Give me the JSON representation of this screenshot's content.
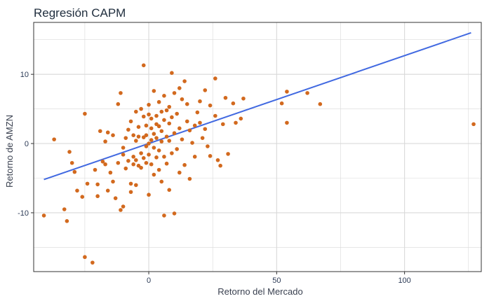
{
  "chart_data": {
    "type": "scatter",
    "title": "Regresión CAPM",
    "xlabel": "Retorno del Mercado",
    "ylabel": "Retorno de AMZN",
    "xlim": [
      -45,
      130
    ],
    "ylim": [
      -18.5,
      17.5
    ],
    "x_ticks": [
      0,
      50,
      100
    ],
    "y_ticks": [
      -10,
      0,
      10
    ],
    "grid": true,
    "legend": "none",
    "colors": {
      "points": "#d2691e",
      "line": "#4169e1",
      "grid": "#d9d9d9",
      "border": "#333333"
    },
    "regression_line": {
      "x": [
        -41,
        126
      ],
      "y": [
        -5.2,
        16.0
      ]
    },
    "points": [
      {
        "x": -41,
        "y": -10.4
      },
      {
        "x": -37,
        "y": 0.6
      },
      {
        "x": -33,
        "y": -9.5
      },
      {
        "x": -32,
        "y": -11.2
      },
      {
        "x": -31,
        "y": -1.2
      },
      {
        "x": -30,
        "y": -2.8
      },
      {
        "x": -29,
        "y": -4.1
      },
      {
        "x": -28,
        "y": -6.8
      },
      {
        "x": -26,
        "y": -7.7
      },
      {
        "x": -25,
        "y": 4.3
      },
      {
        "x": -25,
        "y": -16.4
      },
      {
        "x": -24,
        "y": -5.8
      },
      {
        "x": -22,
        "y": -17.2
      },
      {
        "x": -21,
        "y": -3.8
      },
      {
        "x": -20,
        "y": -7.6
      },
      {
        "x": -20,
        "y": -5.9
      },
      {
        "x": -19,
        "y": 1.8
      },
      {
        "x": -18,
        "y": -2.6
      },
      {
        "x": -17,
        "y": -3.0
      },
      {
        "x": -17,
        "y": 0.3
      },
      {
        "x": -16,
        "y": 1.6
      },
      {
        "x": -16,
        "y": -6.8
      },
      {
        "x": -15,
        "y": -4.2
      },
      {
        "x": -14,
        "y": 1.2
      },
      {
        "x": -14,
        "y": -5.5
      },
      {
        "x": -13,
        "y": -7.9
      },
      {
        "x": -12,
        "y": -2.8
      },
      {
        "x": -12,
        "y": 5.7
      },
      {
        "x": -11,
        "y": 7.3
      },
      {
        "x": -11,
        "y": -9.6
      },
      {
        "x": -10,
        "y": -9.1
      },
      {
        "x": -10,
        "y": -0.6
      },
      {
        "x": -10,
        "y": -1.6
      },
      {
        "x": -9,
        "y": 0.8
      },
      {
        "x": -9,
        "y": -3.6
      },
      {
        "x": -8,
        "y": -2.5
      },
      {
        "x": -8,
        "y": 2.0
      },
      {
        "x": -7,
        "y": -7.0
      },
      {
        "x": -7,
        "y": -5.8
      },
      {
        "x": -7,
        "y": 3.2
      },
      {
        "x": -6,
        "y": 1.2
      },
      {
        "x": -6,
        "y": -3.0
      },
      {
        "x": -6,
        "y": -1.9
      },
      {
        "x": -5,
        "y": 4.6
      },
      {
        "x": -5,
        "y": -6.0
      },
      {
        "x": -5,
        "y": 0.4
      },
      {
        "x": -5,
        "y": -2.4
      },
      {
        "x": -4,
        "y": -3.2
      },
      {
        "x": -4,
        "y": 2.4
      },
      {
        "x": -4,
        "y": 1.0
      },
      {
        "x": -3,
        "y": 5.0
      },
      {
        "x": -3,
        "y": -1.4
      },
      {
        "x": -3,
        "y": -3.5
      },
      {
        "x": -2,
        "y": 0.9
      },
      {
        "x": -2,
        "y": 3.9
      },
      {
        "x": -2,
        "y": 11.3
      },
      {
        "x": -2,
        "y": -2.1
      },
      {
        "x": -1,
        "y": -0.4
      },
      {
        "x": -1,
        "y": 2.6
      },
      {
        "x": -1,
        "y": -2.8
      },
      {
        "x": -1,
        "y": 1.2
      },
      {
        "x": 0,
        "y": 5.6
      },
      {
        "x": 0,
        "y": -7.4
      },
      {
        "x": 0,
        "y": 4.2
      },
      {
        "x": 0,
        "y": 0.0
      },
      {
        "x": 0,
        "y": -1.6
      },
      {
        "x": 1,
        "y": 3.6
      },
      {
        "x": 1,
        "y": 2.2
      },
      {
        "x": 1,
        "y": -3.0
      },
      {
        "x": 1,
        "y": 0.5
      },
      {
        "x": 2,
        "y": 7.6
      },
      {
        "x": 2,
        "y": -0.6
      },
      {
        "x": 2,
        "y": 1.4
      },
      {
        "x": 2,
        "y": -4.5
      },
      {
        "x": 3,
        "y": 4.0
      },
      {
        "x": 3,
        "y": 2.8
      },
      {
        "x": 3,
        "y": -2.0
      },
      {
        "x": 3,
        "y": 0.8
      },
      {
        "x": 4,
        "y": 6.0
      },
      {
        "x": 4,
        "y": -1.0
      },
      {
        "x": 4,
        "y": 2.5
      },
      {
        "x": 4,
        "y": -3.8
      },
      {
        "x": 5,
        "y": 4.6
      },
      {
        "x": 5,
        "y": 0.3
      },
      {
        "x": 5,
        "y": 1.8
      },
      {
        "x": 5,
        "y": -5.5
      },
      {
        "x": 6,
        "y": 3.4
      },
      {
        "x": 6,
        "y": 6.9
      },
      {
        "x": 6,
        "y": -1.9
      },
      {
        "x": 6,
        "y": -10.4
      },
      {
        "x": 7,
        "y": 1.0
      },
      {
        "x": 7,
        "y": 4.8
      },
      {
        "x": 7,
        "y": -2.9
      },
      {
        "x": 8,
        "y": 0.4
      },
      {
        "x": 8,
        "y": 2.9
      },
      {
        "x": 8,
        "y": -6.7
      },
      {
        "x": 8,
        "y": 5.3
      },
      {
        "x": 9,
        "y": 10.2
      },
      {
        "x": 9,
        "y": -1.4
      },
      {
        "x": 9,
        "y": 3.8
      },
      {
        "x": 10,
        "y": 1.5
      },
      {
        "x": 10,
        "y": -10.1
      },
      {
        "x": 10,
        "y": 7.3
      },
      {
        "x": 11,
        "y": -0.8
      },
      {
        "x": 11,
        "y": 4.3
      },
      {
        "x": 12,
        "y": 2.2
      },
      {
        "x": 12,
        "y": -4.2
      },
      {
        "x": 12,
        "y": 8.0
      },
      {
        "x": 13,
        "y": 6.4
      },
      {
        "x": 13,
        "y": 0.6
      },
      {
        "x": 14,
        "y": 9.0
      },
      {
        "x": 14,
        "y": -3.1
      },
      {
        "x": 15,
        "y": 3.2
      },
      {
        "x": 15,
        "y": 5.7
      },
      {
        "x": 16,
        "y": -5.1
      },
      {
        "x": 16,
        "y": 1.9
      },
      {
        "x": 17,
        "y": 0.1
      },
      {
        "x": 18,
        "y": 2.6
      },
      {
        "x": 18,
        "y": -1.9
      },
      {
        "x": 19,
        "y": 4.5
      },
      {
        "x": 20,
        "y": 6.1
      },
      {
        "x": 20,
        "y": 3.0
      },
      {
        "x": 21,
        "y": 0.8
      },
      {
        "x": 22,
        "y": 7.7
      },
      {
        "x": 22,
        "y": 2.1
      },
      {
        "x": 23,
        "y": -0.4
      },
      {
        "x": 24,
        "y": -1.8
      },
      {
        "x": 24,
        "y": 5.5
      },
      {
        "x": 26,
        "y": 9.4
      },
      {
        "x": 26,
        "y": 4.0
      },
      {
        "x": 27,
        "y": -2.4
      },
      {
        "x": 28,
        "y": -3.2
      },
      {
        "x": 29,
        "y": 2.8
      },
      {
        "x": 30,
        "y": 6.6
      },
      {
        "x": 31,
        "y": -1.5
      },
      {
        "x": 33,
        "y": 5.8
      },
      {
        "x": 34,
        "y": 3.0
      },
      {
        "x": 36,
        "y": 3.6
      },
      {
        "x": 37,
        "y": 6.5
      },
      {
        "x": 52,
        "y": 5.8
      },
      {
        "x": 54,
        "y": 7.5
      },
      {
        "x": 54,
        "y": 3.0
      },
      {
        "x": 62,
        "y": 7.3
      },
      {
        "x": 67,
        "y": 5.7
      },
      {
        "x": 127,
        "y": 2.8
      }
    ]
  }
}
